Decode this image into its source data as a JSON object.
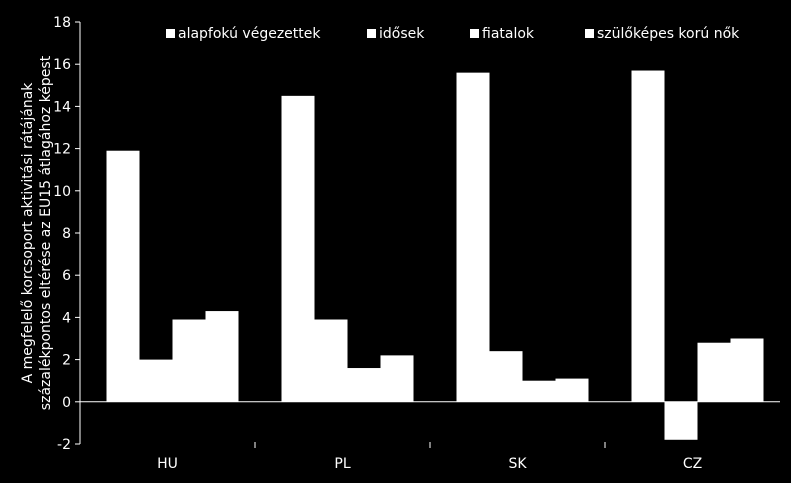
{
  "chart_data": {
    "type": "bar",
    "categories": [
      "HU",
      "PL",
      "SK",
      "CZ"
    ],
    "series": [
      {
        "name": "alapfokú végezettek",
        "values": [
          11.9,
          14.5,
          15.6,
          15.7
        ]
      },
      {
        "name": "idősek",
        "values": [
          2.0,
          3.9,
          2.4,
          -1.8
        ]
      },
      {
        "name": "fiatalok",
        "values": [
          3.9,
          1.6,
          1.0,
          2.8
        ]
      },
      {
        "name": "szülőképes korú nők",
        "values": [
          4.3,
          2.2,
          1.1,
          3.0
        ]
      }
    ],
    "title": "",
    "xlabel": "",
    "ylabel_line1": "A megfelelő korcsoport  aktivitási rátájának",
    "ylabel_line2": "százalékpontos  eltérése az EU15 átlagához képest",
    "ylim": [
      -2,
      18
    ],
    "yticks": [
      -2,
      0,
      2,
      4,
      6,
      8,
      10,
      12,
      14,
      16,
      18
    ],
    "grid": false,
    "legend_position": "top",
    "colors": {
      "background": "#000000",
      "bars": "#ffffff",
      "axes": "#ffffff"
    }
  }
}
